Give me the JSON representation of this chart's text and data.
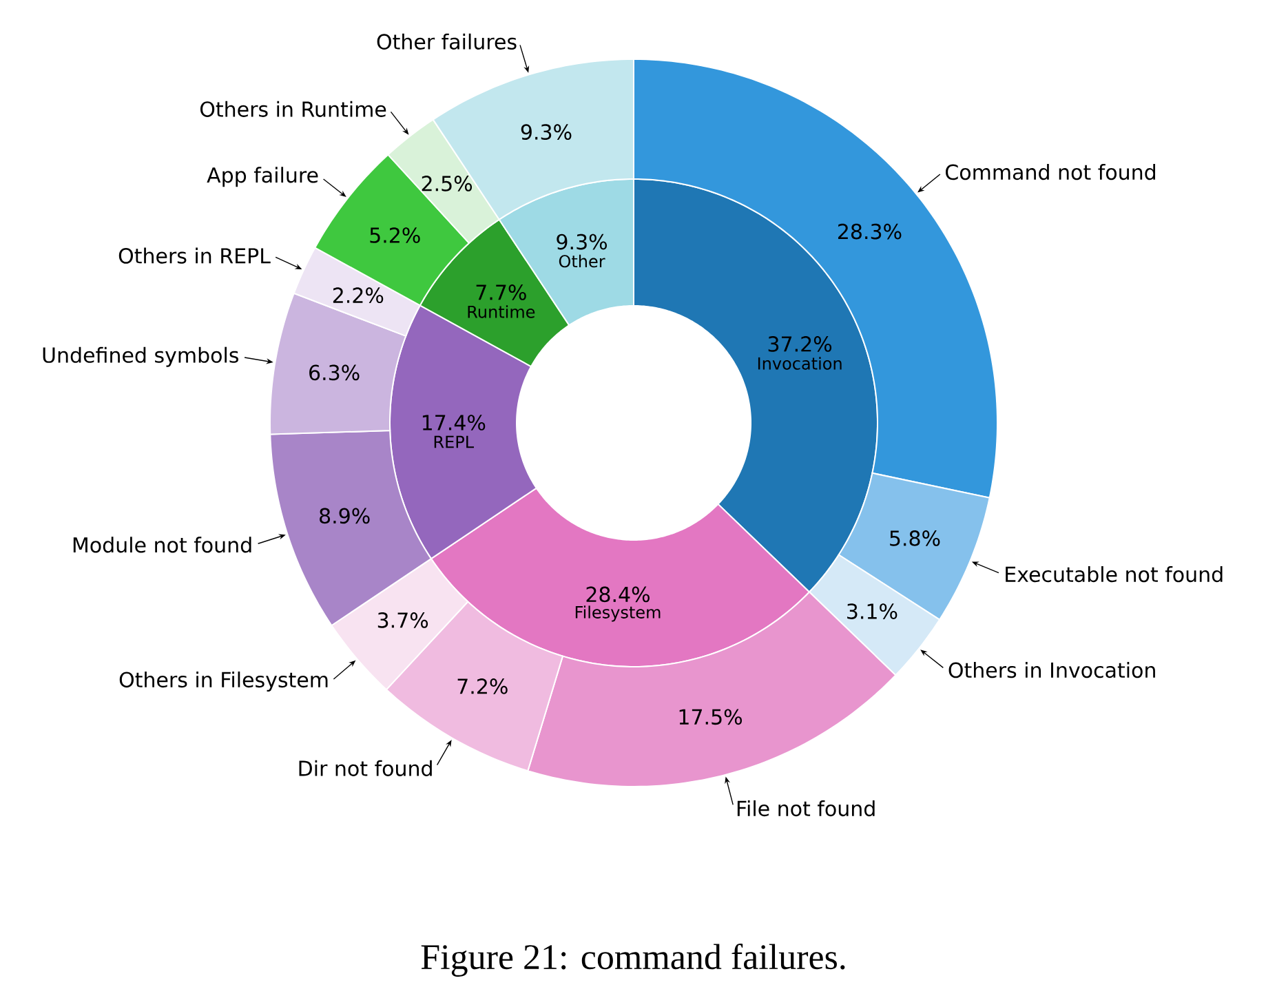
{
  "chart_data": [
    {
      "type": "donut",
      "categories": [
        "Invocation",
        "Filesystem",
        "REPL",
        "Runtime",
        "Other"
      ],
      "values": [
        37.2,
        28.4,
        17.4,
        7.7,
        9.3
      ],
      "value_labels": [
        "37.2%",
        "28.4%",
        "17.4%",
        "7.7%",
        "9.3%"
      ],
      "colors": [
        "#1f77b4",
        "#e377c2",
        "#9467bd",
        "#2ca02c",
        "#9edae5"
      ],
      "annotations": [
        "Figure 21: command failures."
      ]
    },
    {
      "type": "donut",
      "categories": [
        "Command not found",
        "Executable not found",
        "Others in Invocation",
        "File not found",
        "Dir not found",
        "Others in Filesystem",
        "Module not found",
        "Undefined symbols",
        "Others in REPL",
        "App failure",
        "Others in Runtime",
        "Other failures"
      ],
      "values": [
        28.3,
        5.8,
        3.1,
        17.5,
        7.2,
        3.7,
        8.9,
        6.3,
        2.2,
        5.2,
        2.5,
        9.3
      ],
      "value_labels": [
        "28.3%",
        "5.8%",
        "3.1%",
        "17.5%",
        "7.2%",
        "3.7%",
        "8.9%",
        "6.3%",
        "2.2%",
        "5.2%",
        "2.5%",
        "9.3%"
      ],
      "colors": [
        "#3397dc",
        "#85c1ec",
        "#d5e9f7",
        "#e895ce",
        "#f0bbe0",
        "#f8e3f1",
        "#a885c8",
        "#cbb5df",
        "#ede4f4",
        "#3fc83f",
        "#d9f2d9",
        "#c2e7ee"
      ]
    }
  ]
}
